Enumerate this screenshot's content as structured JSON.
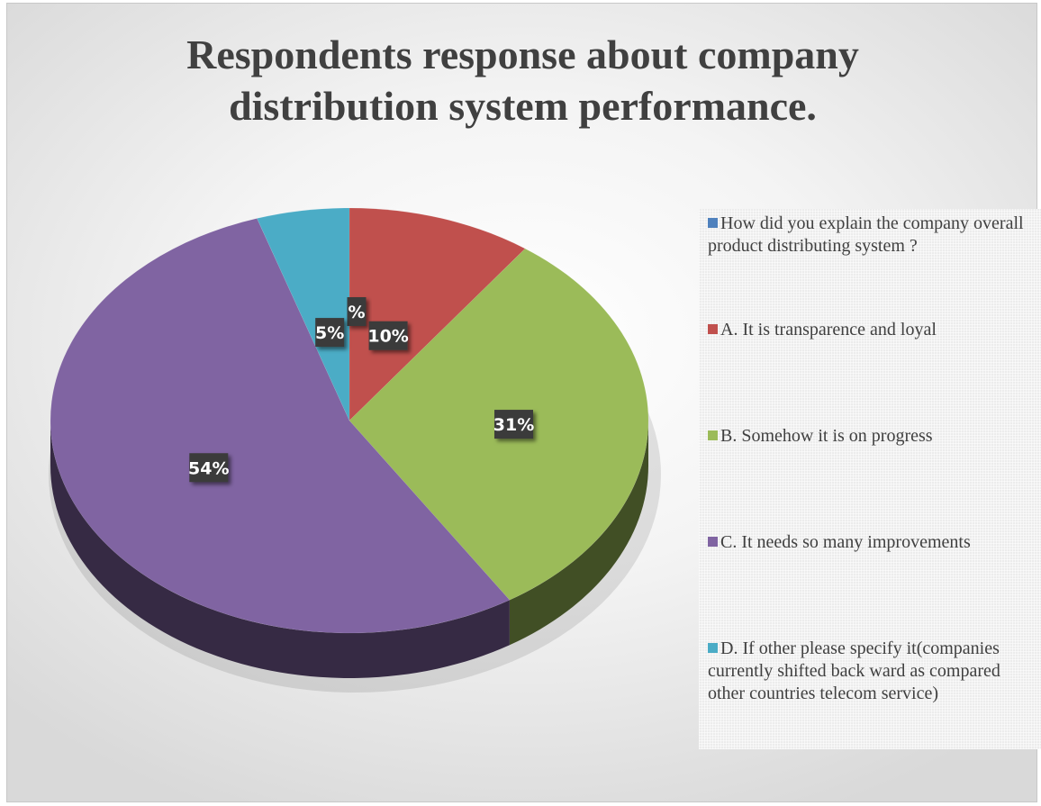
{
  "chart_data": {
    "type": "pie",
    "title": "Respondents response about company distribution system performance.",
    "title_lines": [
      "Respondents response about company",
      "distribution system performance."
    ],
    "three_d": true,
    "legend_position": "right",
    "slices": [
      {
        "label": "How did you explain the company overall product distributing system ?",
        "value": 0,
        "data_label": "%",
        "color": "#4F81BD"
      },
      {
        "label": "A. It is transparence and loyal",
        "value": 10,
        "data_label": "10%",
        "color": "#C0504D"
      },
      {
        "label": "B. Somehow it is on progress",
        "value": 31,
        "data_label": "31%",
        "color": "#9BBB59"
      },
      {
        "label": "C. It needs so many improvements",
        "value": 54,
        "data_label": "54%",
        "color": "#8064A2"
      },
      {
        "label": "D.  If other please specify it(companies currently shifted back ward as compared other countries telecom service)",
        "value": 5,
        "data_label": "5%",
        "color": "#4BACC6"
      }
    ]
  }
}
